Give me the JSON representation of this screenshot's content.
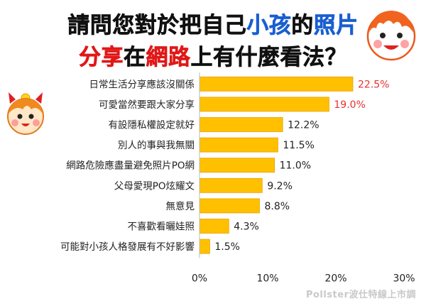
{
  "title": {
    "line1": [
      {
        "text": "請問您對於把自己",
        "color": "#111111"
      },
      {
        "text": "小孩",
        "color": "#1a5fd0"
      },
      {
        "text": "的",
        "color": "#111111"
      },
      {
        "text": "照片",
        "color": "#1a5fd0"
      }
    ],
    "line2": [
      {
        "text": "分享",
        "color": "#e01818"
      },
      {
        "text": "在",
        "color": "#111111"
      },
      {
        "text": "網路",
        "color": "#e01818"
      },
      {
        "text": "上有什麼看法？",
        "color": "#111111"
      }
    ]
  },
  "source": "Pollster波仕特線上市調",
  "chart_data": {
    "type": "bar",
    "orientation": "horizontal",
    "categories": [
      "日常生活分享應該沒關係",
      "可愛當然要跟大家分享",
      "有設隱私權設定就好",
      "別人的事與我無關",
      "網路危險應盡量避免照片PO網",
      "父母愛現PO炫耀文",
      "無意見",
      "不喜歡看曬娃照",
      "可能對小孩人格發展有不好影響"
    ],
    "values": [
      22.5,
      19.0,
      12.2,
      11.5,
      11.0,
      9.2,
      8.8,
      4.3,
      1.5
    ],
    "labels": [
      "22.5%",
      "19.0%",
      "12.2%",
      "11.5%",
      "11.0%",
      "9.2%",
      "8.8%",
      "4.3%",
      "1.5%"
    ],
    "highlight_top": 2,
    "bar_color": "#ffc000",
    "bar_edge_color": "#e8a000",
    "highlight_label_color": "#e83030",
    "label_color": "#222222",
    "xlim": [
      0,
      30
    ],
    "xticks": [
      "0%",
      "10%",
      "20%",
      "30%"
    ],
    "grid": false
  }
}
